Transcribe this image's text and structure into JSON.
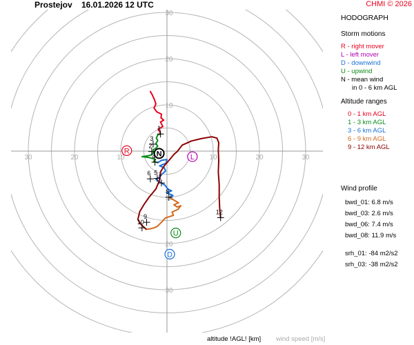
{
  "header": {
    "station": "Prostejov",
    "time": "16.01.2026 12 UTC",
    "credit": "CHMI © 2026"
  },
  "legend": {
    "title": "HODOGRAPH",
    "storm_title": "Storm motions",
    "storm_items": [
      {
        "text": "R - right mover",
        "color": "#e8001c"
      },
      {
        "text": "L - left mover",
        "color": "#b000b0"
      },
      {
        "text": "D - downwind",
        "color": "#1a6fd6"
      },
      {
        "text": "U - upwind",
        "color": "#0a8a1a"
      },
      {
        "text": "N - mean wind",
        "color": "#000000"
      },
      {
        "text": "in 0 - 6 km AGL",
        "color": "#000000"
      }
    ],
    "alt_title": "Altitude ranges",
    "alt_items": [
      {
        "text": "0 - 1 km AGL",
        "color": "#e8001c"
      },
      {
        "text": "1 - 3 km AGL",
        "color": "#0a8a1a"
      },
      {
        "text": "3 - 6 km AGL",
        "color": "#1a6fd6"
      },
      {
        "text": "6 - 9 km AGL",
        "color": "#d2691e"
      },
      {
        "text": "9 - 12 km AGL",
        "color": "#8b0000"
      }
    ]
  },
  "wind_profile": {
    "title": "Wind profile",
    "bwd": [
      {
        "text": "bwd_01: 6.8 m/s"
      },
      {
        "text": "bwd_03: 2.6 m/s"
      },
      {
        "text": "bwd_06: 7.4 m/s"
      },
      {
        "text": "bwd_08: 11.9 m/s"
      }
    ],
    "srh": [
      {
        "text": "srh_01: -84 m2/s2"
      },
      {
        "text": "srh_03: -38 m2/s2"
      }
    ]
  },
  "footer": {
    "altitude_label": "altitude !AGL! [km]",
    "wind_speed_label": "wind speed [m/s]"
  },
  "chart_data": {
    "type": "line",
    "title": "HODOGRAPH",
    "xlabel": "wind speed [m/s]",
    "ylabel": "wind speed [m/s]",
    "xlim": [
      -33,
      33
    ],
    "ylim": [
      -40,
      30
    ],
    "grid": true,
    "ring_radii": [
      5,
      10,
      15,
      20,
      25,
      30,
      35,
      40
    ],
    "x_ticks": [
      {
        "v": -30,
        "t": "30"
      },
      {
        "v": -20,
        "t": "20"
      },
      {
        "v": -10,
        "t": "10"
      },
      {
        "v": 10,
        "t": "10"
      },
      {
        "v": 20,
        "t": "20"
      },
      {
        "v": 30,
        "t": "30"
      }
    ],
    "y_ticks": [
      {
        "v": 30,
        "t": "30"
      },
      {
        "v": 20,
        "t": "20"
      },
      {
        "v": 10,
        "t": "10"
      },
      {
        "v": -10,
        "t": "10"
      },
      {
        "v": -20,
        "t": "20"
      },
      {
        "v": -30,
        "t": "30"
      }
    ],
    "series": [
      {
        "name": "0 - 1 km AGL",
        "color": "#e8001c",
        "points": [
          [
            -3.6,
            12.9
          ],
          [
            -3.2,
            12.2
          ],
          [
            -2.7,
            11.1
          ],
          [
            -2.4,
            10.2
          ],
          [
            -2.8,
            9.3
          ],
          [
            -2.2,
            8.5
          ],
          [
            -1.2,
            8.0
          ],
          [
            -1.3,
            7.2
          ],
          [
            -0.7,
            6.7
          ],
          [
            -1.4,
            6.3
          ],
          [
            -0.9,
            5.3
          ],
          [
            -1.9,
            4.8
          ],
          [
            -1.6,
            4.2
          ],
          [
            -1.4,
            3.7
          ]
        ]
      },
      {
        "name": "1 - 3 km AGL",
        "color": "#0a8a1a",
        "points": [
          [
            -1.4,
            3.7
          ],
          [
            -2.0,
            3.5
          ],
          [
            -2.3,
            2.8
          ],
          [
            -2.0,
            2.3
          ],
          [
            -2.4,
            1.6
          ],
          [
            -2.0,
            1.1
          ],
          [
            -2.4,
            0.6
          ],
          [
            -3.0,
            0.3
          ],
          [
            -2.9,
            -0.2
          ],
          [
            -3.3,
            -0.8
          ],
          [
            -4.1,
            -1.0
          ],
          [
            -5.4,
            -1.2
          ],
          [
            -3.8,
            -1.4
          ],
          [
            -2.5,
            -1.8
          ],
          [
            -2.9,
            -2.2
          ],
          [
            -2.0,
            -2.5
          ]
        ]
      },
      {
        "name": "3 - 6 km AGL",
        "color": "#1a6fd6",
        "points": [
          [
            -2.0,
            -2.5
          ],
          [
            -1.2,
            -2.0
          ],
          [
            0.0,
            -1.8
          ],
          [
            -0.2,
            -2.6
          ],
          [
            -1.6,
            -3.2
          ],
          [
            -0.6,
            -3.6
          ],
          [
            -0.3,
            -4.3
          ],
          [
            -1.1,
            -5.0
          ],
          [
            -1.6,
            -5.6
          ],
          [
            -2.4,
            -6.1
          ],
          [
            -1.2,
            -6.9
          ],
          [
            -0.4,
            -7.4
          ],
          [
            0.2,
            -8.2
          ],
          [
            1.0,
            -8.6
          ],
          [
            0.0,
            -9.0
          ],
          [
            1.3,
            -9.6
          ],
          [
            0.5,
            -10.0
          ]
        ]
      },
      {
        "name": "6 - 9 km AGL",
        "color": "#d2691e",
        "points": [
          [
            0.5,
            -10.0
          ],
          [
            1.7,
            -10.7
          ],
          [
            2.5,
            -11.2
          ],
          [
            1.5,
            -11.6
          ],
          [
            2.2,
            -12.1
          ],
          [
            3.0,
            -11.8
          ],
          [
            2.4,
            -12.6
          ],
          [
            1.1,
            -13.2
          ],
          [
            1.4,
            -13.9
          ],
          [
            -0.4,
            -14.5
          ],
          [
            -1.0,
            -15.2
          ],
          [
            -1.5,
            -15.7
          ],
          [
            -2.1,
            -16.3
          ],
          [
            -2.8,
            -16.6
          ],
          [
            -3.6,
            -16.8
          ],
          [
            -4.5,
            -16.9
          ]
        ]
      },
      {
        "name": "9 - 12 km AGL",
        "color": "#8b0000",
        "points": [
          [
            -4.5,
            -16.9
          ],
          [
            -5.6,
            -15.9
          ],
          [
            -6.3,
            -14.8
          ],
          [
            -5.9,
            -13.1
          ],
          [
            -5.0,
            -11.6
          ],
          [
            -3.9,
            -10.0
          ],
          [
            -2.4,
            -8.2
          ],
          [
            -1.6,
            -6.3
          ],
          [
            -1.4,
            -4.5
          ],
          [
            -0.6,
            -3.2
          ],
          [
            0.6,
            -1.8
          ],
          [
            1.5,
            -0.7
          ],
          [
            2.2,
            -0.1
          ],
          [
            3.3,
            1.3
          ],
          [
            5.3,
            2.2
          ],
          [
            7.4,
            2.7
          ],
          [
            9.7,
            3.1
          ],
          [
            10.8,
            2.8
          ],
          [
            11.2,
            1.8
          ],
          [
            11.1,
            0.2
          ],
          [
            11.2,
            -2.0
          ],
          [
            11.1,
            -4.6
          ],
          [
            11.3,
            -7.2
          ],
          [
            11.3,
            -10.0
          ],
          [
            11.4,
            -12.5
          ],
          [
            11.6,
            -14.4
          ]
        ]
      }
    ],
    "altitude_marks": [
      {
        "label": "1",
        "x": -1.4,
        "y": 3.7
      },
      {
        "label": "2",
        "x": -3.3,
        "y": -0.1
      },
      {
        "label": "3",
        "x": -3.0,
        "y": 1.5
      },
      {
        "label": "4",
        "x": -2.6,
        "y": -2.4
      },
      {
        "label": "5",
        "x": -2.1,
        "y": -5.9
      },
      {
        "label": "6",
        "x": -3.6,
        "y": -6.0
      },
      {
        "label": "7",
        "x": -1.2,
        "y": -6.9
      },
      {
        "label": "8",
        "x": 0.4,
        "y": -10.0
      },
      {
        "label": "9",
        "x": -4.4,
        "y": -15.4
      },
      {
        "label": "10",
        "x": -5.4,
        "y": -16.6
      },
      {
        "label": "12",
        "x": 11.6,
        "y": -14.4
      }
    ],
    "storm_motions": [
      {
        "label": "R",
        "x": -8.7,
        "y": 0.1,
        "color": "#e8001c"
      },
      {
        "label": "N",
        "x": -1.7,
        "y": -0.5,
        "color": "#000000"
      },
      {
        "label": "L",
        "x": 5.5,
        "y": -1.2,
        "color": "#b000b0"
      },
      {
        "label": "U",
        "x": 1.9,
        "y": -17.7,
        "color": "#0a8a1a"
      },
      {
        "label": "D",
        "x": 0.6,
        "y": -22.3,
        "color": "#1a6fd6"
      }
    ]
  }
}
